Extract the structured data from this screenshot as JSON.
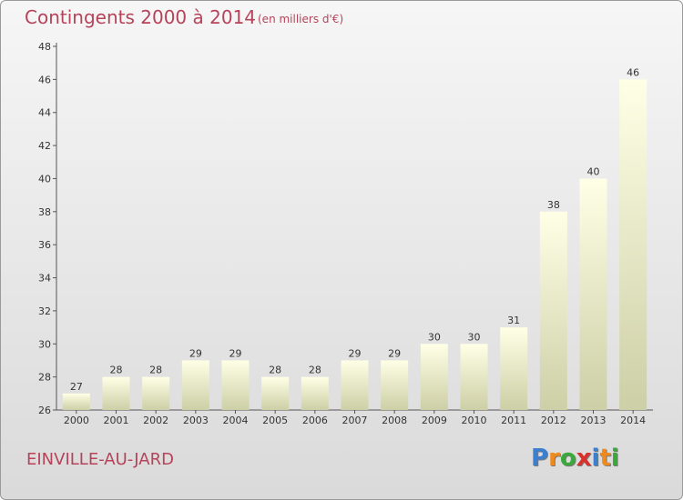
{
  "chart_data": {
    "type": "bar",
    "title": "Contingents 2000 à 2014",
    "unit": "(en milliers d'€)",
    "categories": [
      "2000",
      "2001",
      "2002",
      "2003",
      "2004",
      "2005",
      "2006",
      "2007",
      "2008",
      "2009",
      "2010",
      "2011",
      "2012",
      "2013",
      "2014"
    ],
    "values": [
      27,
      28,
      28,
      29,
      29,
      28,
      28,
      29,
      29,
      30,
      30,
      31,
      38,
      40,
      46
    ],
    "ylim": [
      26,
      48
    ],
    "yticks": [
      26,
      28,
      30,
      32,
      34,
      36,
      38,
      40,
      42,
      44,
      46,
      48
    ],
    "xlabel": "",
    "ylabel": "",
    "grid": false,
    "legend": "none"
  },
  "commune": "EINVILLE-AU-JARD",
  "logo": {
    "text": "Proxiti",
    "letters": [
      "P",
      "r",
      "o",
      "x",
      "i",
      "t",
      "i"
    ],
    "colors": [
      "#3b7fd1",
      "#f08a1c",
      "#3aa83a",
      "#d9302c",
      "#3b7fd1",
      "#f08a1c",
      "#3aa83a"
    ]
  },
  "colors": {
    "accent": "#b5435a",
    "bar_top": "#ffffe3",
    "bar_bottom": "#cfd0a8"
  }
}
